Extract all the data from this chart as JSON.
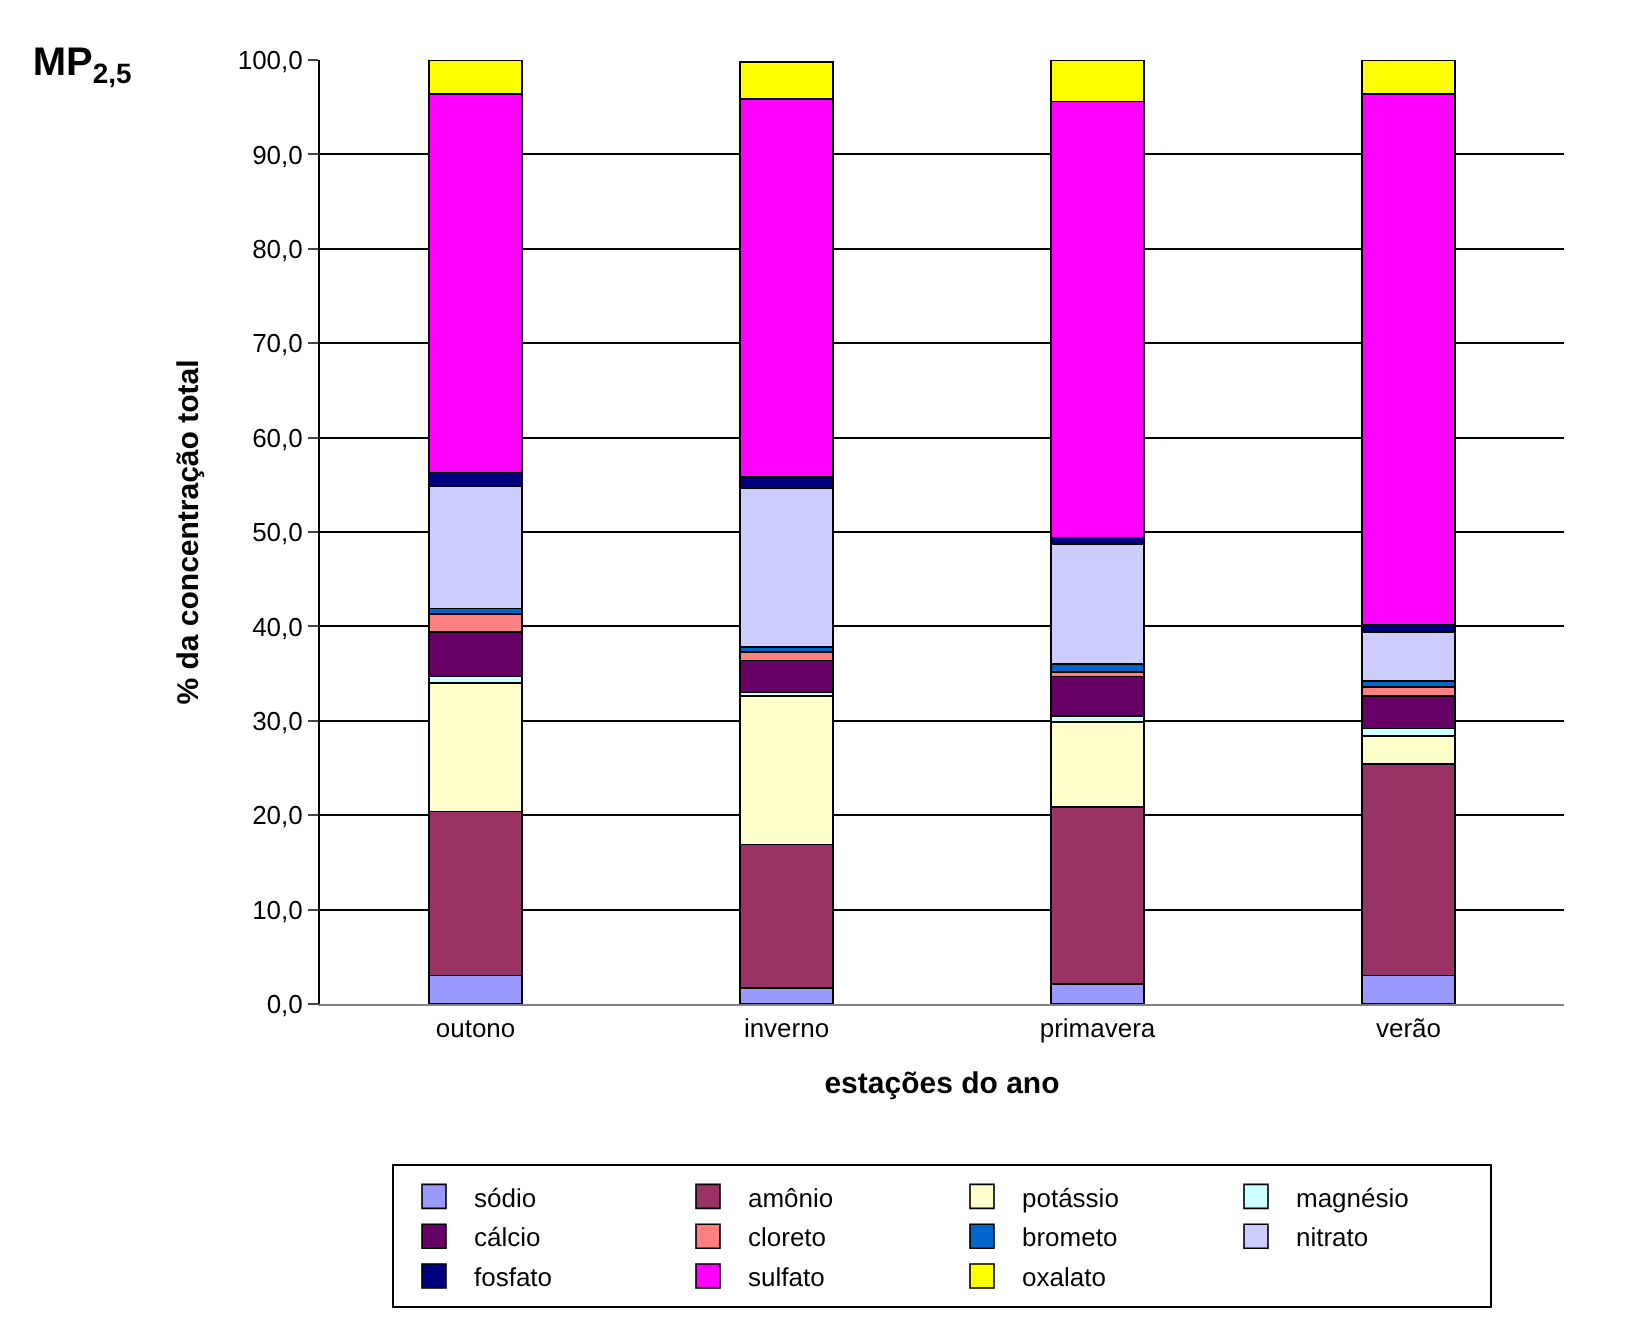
{
  "chart_data": {
    "type": "bar",
    "stacked": true,
    "title": "MP$_{2,5}$",
    "xlabel": "estações do ano",
    "ylabel": "% da concentração total",
    "categories": [
      "outono",
      "inverno",
      "primavera",
      "verão"
    ],
    "series": [
      {
        "name": "sódio",
        "color": "#9999ff",
        "values": [
          3.0,
          1.7,
          2.1,
          3.0
        ]
      },
      {
        "name": "amônio",
        "color": "#993366",
        "values": [
          17.4,
          15.2,
          18.8,
          22.4
        ]
      },
      {
        "name": "potássio",
        "color": "#ffffcc",
        "values": [
          13.6,
          15.7,
          9.0,
          3.0
        ]
      },
      {
        "name": "magnésio",
        "color": "#ccffff",
        "values": [
          0.7,
          0.4,
          0.6,
          0.8
        ]
      },
      {
        "name": "cálcio",
        "color": "#660066",
        "values": [
          4.7,
          3.4,
          4.2,
          3.4
        ]
      },
      {
        "name": "cloreto",
        "color": "#ff8080",
        "values": [
          1.9,
          0.9,
          0.5,
          1.0
        ]
      },
      {
        "name": "brometo",
        "color": "#0066cc",
        "values": [
          0.6,
          0.5,
          0.8,
          0.6
        ]
      },
      {
        "name": "nitrato",
        "color": "#ccccff",
        "values": [
          12.9,
          16.8,
          12.7,
          5.2
        ]
      },
      {
        "name": "fosfato",
        "color": "#000080",
        "values": [
          1.5,
          1.2,
          0.7,
          0.8
        ]
      },
      {
        "name": "sulfato",
        "color": "#ff00ff",
        "values": [
          40.1,
          40.1,
          46.2,
          56.2
        ]
      },
      {
        "name": "oxalato",
        "color": "#ffff00",
        "values": [
          3.6,
          3.9,
          4.4,
          3.6
        ]
      }
    ],
    "ylim": [
      0,
      100
    ],
    "yticks": [
      {
        "value": 0,
        "label": "0,0"
      },
      {
        "value": 10,
        "label": "10,0"
      },
      {
        "value": 20,
        "label": "20,0"
      },
      {
        "value": 30,
        "label": "30,0"
      },
      {
        "value": 40,
        "label": "40,0"
      },
      {
        "value": 50,
        "label": "50,0"
      },
      {
        "value": 60,
        "label": "60,0"
      },
      {
        "value": 70,
        "label": "70,0"
      },
      {
        "value": 80,
        "label": "80,0"
      },
      {
        "value": 90,
        "label": "90,0"
      },
      {
        "value": 100,
        "label": "100,0"
      }
    ],
    "grid": "y",
    "legend": "bottom"
  }
}
